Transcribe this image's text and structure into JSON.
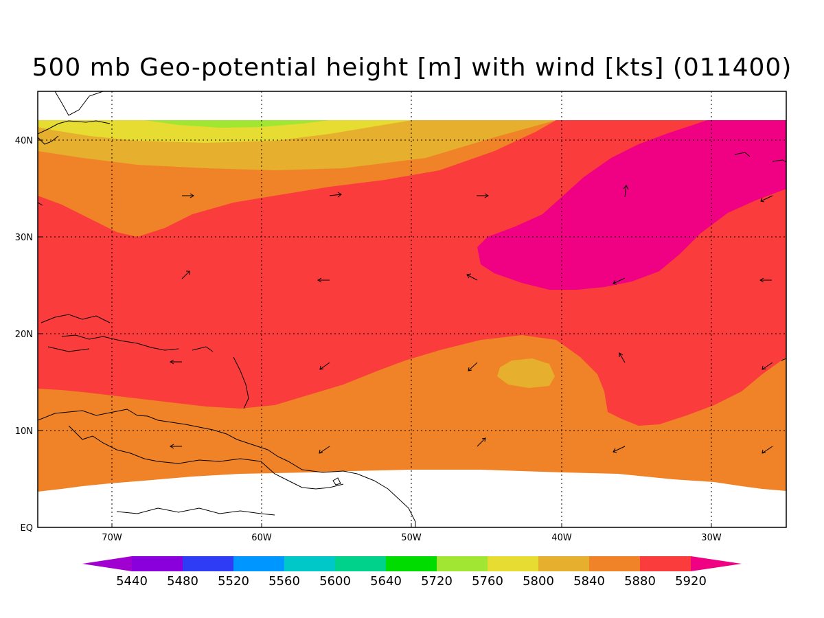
{
  "title": "500 mb Geo-potential height [m] with wind [kts] (011400)",
  "lon_labels": [
    "70W",
    "60W",
    "50W",
    "40W",
    "30W"
  ],
  "lat_labels": [
    "40N",
    "30N",
    "20N",
    "10N",
    "EQ"
  ],
  "legend": {
    "ticks": [
      "5440",
      "5480",
      "5520",
      "5560",
      "5600",
      "5640",
      "5720",
      "5760",
      "5800",
      "5840",
      "5880",
      "5920"
    ],
    "colors": [
      "#a000d0",
      "#8a00dc",
      "#2f3cf5",
      "#0096ff",
      "#00c8c8",
      "#00d28c",
      "#00dc00",
      "#a0e632",
      "#e6dc32",
      "#e6af2d",
      "#f08228",
      "#fa3c3c",
      "#f00082"
    ]
  },
  "map_colors": {
    "5920": "#f00082",
    "5880": "#fa3c3c",
    "5840": "#f08228",
    "5800": "#e6af2d",
    "5760": "#e6dc32",
    "5720": "#a0e632",
    "no_data": "#ffffff"
  }
}
